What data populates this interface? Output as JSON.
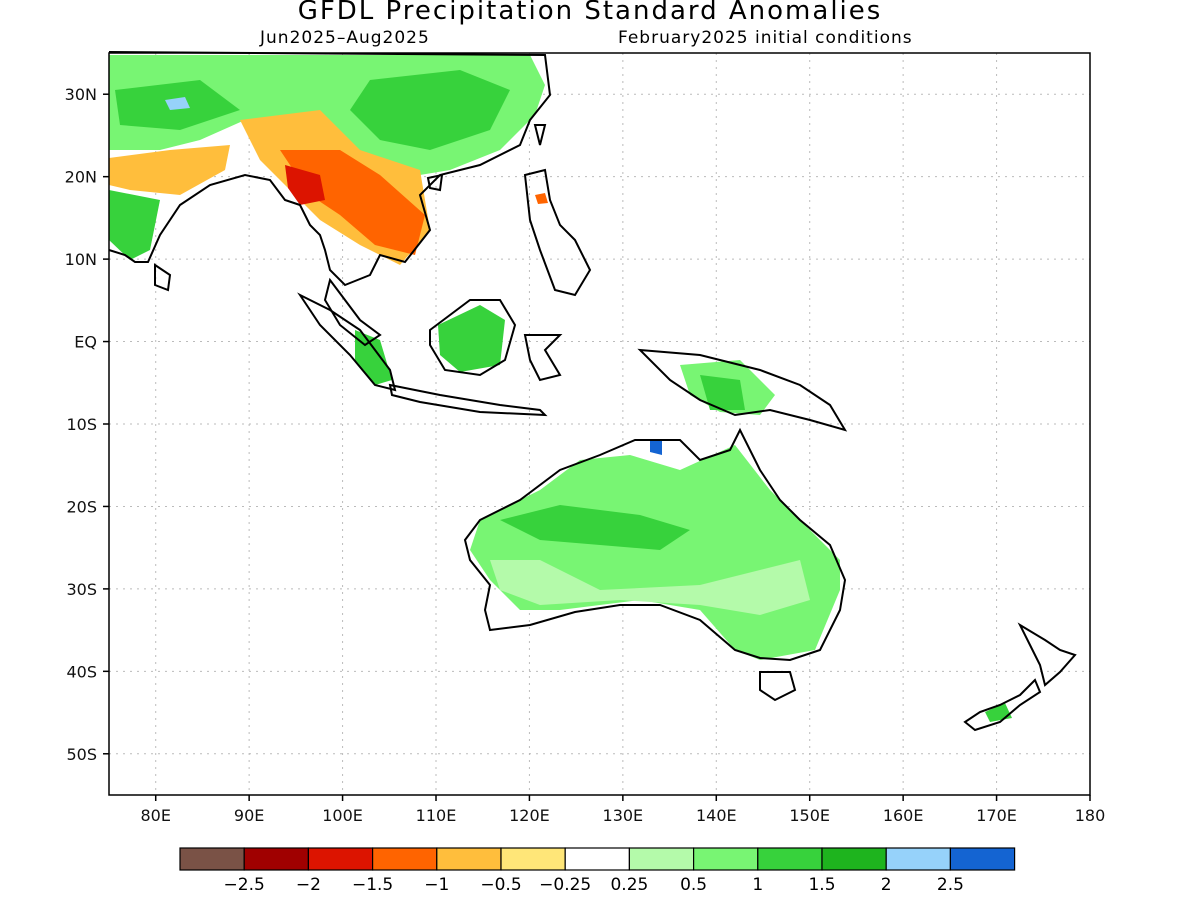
{
  "title": "GFDL Precipitation Standard Anomalies",
  "period": "Jun2025–Aug2025",
  "initial_conditions": "February2025 initial conditions",
  "lat_labels": [
    "30N",
    "20N",
    "10N",
    "EQ",
    "10S",
    "20S",
    "30S",
    "40S",
    "50S"
  ],
  "lat_values": [
    30,
    20,
    10,
    0,
    -10,
    -20,
    -30,
    -40,
    -50
  ],
  "lon_labels": [
    "80E",
    "90E",
    "100E",
    "110E",
    "120E",
    "130E",
    "140E",
    "150E",
    "160E",
    "170E",
    "180"
  ],
  "lon_values": [
    80,
    90,
    100,
    110,
    120,
    130,
    140,
    150,
    160,
    170,
    180
  ],
  "colorbar": {
    "colors": [
      "#7a5246",
      "#a00000",
      "#dc1400",
      "#ff6400",
      "#ffbe3c",
      "#ffe678",
      "#ffffff",
      "#b4faaa",
      "#78f573",
      "#37d23c",
      "#1eb41e",
      "#96d2fa",
      "#1464d2"
    ],
    "labels": [
      "−2.5",
      "−2",
      "−1.5",
      "−1",
      "−0.5",
      "−0.25",
      "0.25",
      "0.5",
      "1",
      "1.5",
      "2",
      "2.5"
    ]
  }
}
